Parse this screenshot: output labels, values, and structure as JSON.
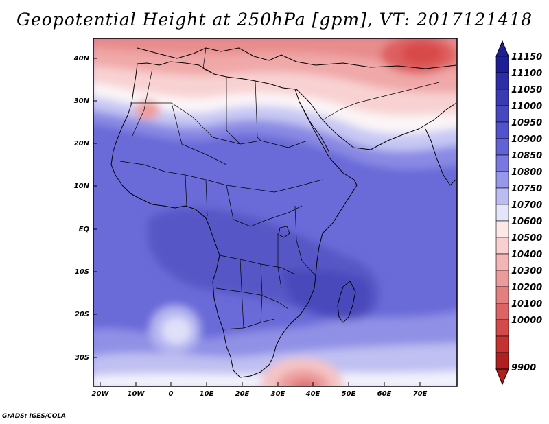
{
  "title": "Geopotential Height at 250hPa [gpm], VT: 2017121418",
  "credit": "GrADS: IGES/COLA",
  "axes": {
    "lat_ticks": [
      "40N",
      "30N",
      "20N",
      "10N",
      "EQ",
      "10S",
      "20S",
      "30S"
    ],
    "lon_ticks": [
      "20W",
      "10W",
      "0",
      "10E",
      "20E",
      "30E",
      "40E",
      "50E",
      "60E",
      "70E"
    ]
  },
  "colorbar": {
    "levels": [
      "11150",
      "11100",
      "11050",
      "11000",
      "10950",
      "10900",
      "10850",
      "10800",
      "10750",
      "10700",
      "10600",
      "10500",
      "10400",
      "10300",
      "10200",
      "10100",
      "10000",
      "9900"
    ],
    "colors": [
      "#1e1e96",
      "#2d2da6",
      "#3a3ab4",
      "#4747c0",
      "#5252cc",
      "#6262d6",
      "#7878e0",
      "#9898ea",
      "#bcbcf2",
      "#e4e4fa",
      "#fde8e8",
      "#f8d0d0",
      "#f3b5b5",
      "#ec9a9a",
      "#e47f7f",
      "#dc6464",
      "#d24a4a",
      "#c43232",
      "#b02020"
    ]
  },
  "map": {
    "colors": {
      "deep_blue": "#6060d0",
      "mid_blue": "#7c7ce0",
      "light_blue": "#a8a8ee",
      "pale_blue": "#d8d8f8",
      "white": "#fafaff",
      "pale_red": "#fde0e0",
      "light_red": "#f5b8b8",
      "mid_red": "#ec9090",
      "red": "#e26868",
      "deep_red": "#d84848"
    }
  }
}
